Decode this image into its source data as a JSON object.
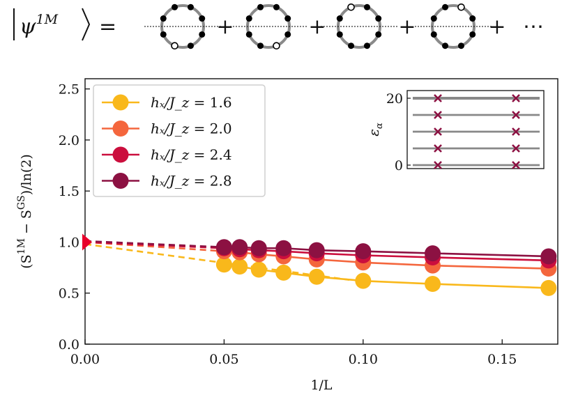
{
  "equation": {
    "lhs_symbol": "ψ",
    "lhs_superscript": "1M",
    "equals": "=",
    "plus": "+",
    "ellipsis": "⋯",
    "ring_count": 4
  },
  "chart_data": {
    "type": "line",
    "xlabel": "1/L",
    "ylabel": "(S^{1M} − S^{GS})/ln(2)",
    "ylabel_parts": {
      "open": "(S",
      "sup1": "1M",
      "minus": " − S",
      "sup2": "GS",
      "close": ")/ln(2)"
    },
    "xlim": [
      0,
      0.17
    ],
    "ylim": [
      0,
      2.6
    ],
    "xticks": [
      0.0,
      0.05,
      0.1,
      0.15
    ],
    "xtick_labels": [
      "0.00",
      "0.05",
      "0.10",
      "0.15"
    ],
    "yticks": [
      0.0,
      0.5,
      1.0,
      1.5,
      2.0,
      2.5
    ],
    "ytick_labels": [
      "0.0",
      "0.5",
      "1.0",
      "1.5",
      "2.0",
      "2.5"
    ],
    "legend_position": "top-left",
    "series": [
      {
        "name": "h_x/J_z = 1.6",
        "label_lhs": "hₓ/J_z",
        "label_value": "1.6",
        "color": "#f9b81b",
        "x": [
          0.05,
          0.0556,
          0.0625,
          0.0714,
          0.0833,
          0.1,
          0.125,
          0.1667
        ],
        "y": [
          0.78,
          0.76,
          0.73,
          0.7,
          0.66,
          0.62,
          0.59,
          0.55
        ],
        "extrap": [
          [
            0.0,
            0.98
          ],
          [
            0.095,
            0.63
          ]
        ]
      },
      {
        "name": "h_x/J_z = 2.0",
        "label_lhs": "hₓ/J_z",
        "label_value": "2.0",
        "color": "#f4663d",
        "x": [
          0.05,
          0.0556,
          0.0625,
          0.0714,
          0.0833,
          0.1,
          0.125,
          0.1667
        ],
        "y": [
          0.91,
          0.9,
          0.88,
          0.86,
          0.83,
          0.8,
          0.77,
          0.74
        ],
        "extrap": [
          [
            0.0,
            1.0
          ],
          [
            0.05,
            0.91
          ]
        ]
      },
      {
        "name": "h_x/J_z = 2.4",
        "label_lhs": "hₓ/J_z",
        "label_value": "2.4",
        "color": "#cb0e3d",
        "x": [
          0.05,
          0.0556,
          0.0625,
          0.0714,
          0.0833,
          0.1,
          0.125,
          0.1667
        ],
        "y": [
          0.94,
          0.93,
          0.92,
          0.91,
          0.89,
          0.87,
          0.85,
          0.82
        ],
        "extrap": [
          [
            0.0,
            1.0
          ],
          [
            0.05,
            0.94
          ]
        ]
      },
      {
        "name": "h_x/J_z = 2.8",
        "label_lhs": "hₓ/J_z",
        "label_value": "2.8",
        "color": "#8c1142",
        "x": [
          0.05,
          0.0556,
          0.0625,
          0.0714,
          0.0833,
          0.1,
          0.125,
          0.1667
        ],
        "y": [
          0.95,
          0.95,
          0.94,
          0.94,
          0.92,
          0.91,
          0.89,
          0.86
        ],
        "extrap": [
          [
            0.0,
            1.01
          ],
          [
            0.05,
            0.95
          ]
        ]
      }
    ],
    "extrapolated_marker": {
      "x": 0.0,
      "y": 1.0,
      "color": "#e8002a",
      "shape": "triangle"
    },
    "inset": {
      "ylabel": "ε_α",
      "ylabel_symbol": "ε",
      "ylabel_sub": "α",
      "yticks": [
        0,
        20
      ],
      "ytick_labels": [
        "0",
        "20"
      ],
      "levels": [
        0,
        5,
        10,
        15,
        20
      ],
      "markers_per_level": 2,
      "marker_color": "#8c1142",
      "line_color": "#888888"
    }
  }
}
